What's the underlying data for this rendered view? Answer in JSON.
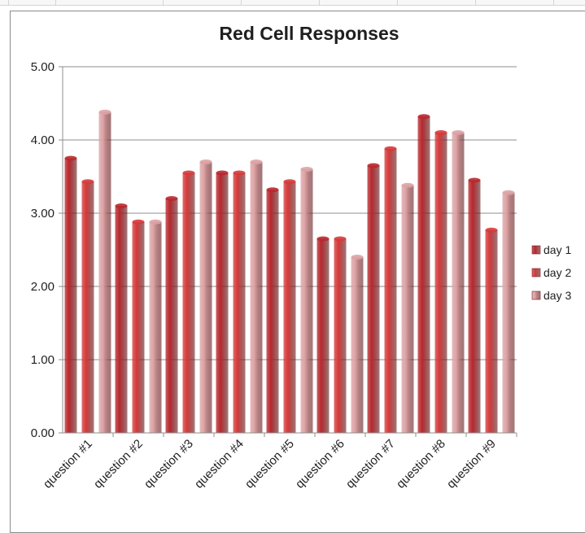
{
  "colors": {
    "day1": "#b8282e",
    "day2": "#d63a3a",
    "day3": "#dca2a4",
    "grid": "#8f8f8f",
    "frame": "#8c8c8c"
  },
  "chart_data": {
    "type": "bar",
    "title": "Red Cell Responses",
    "xlabel": "",
    "ylabel": "",
    "ylim": [
      0,
      5
    ],
    "yticks": [
      "0.00",
      "1.00",
      "2.00",
      "3.00",
      "4.00",
      "5.00"
    ],
    "grid": true,
    "legend_position": "right",
    "categories": [
      "question #1",
      "question #2",
      "question #3",
      "question #4",
      "question #5",
      "question #6",
      "question #7",
      "question #8",
      "question #9"
    ],
    "series": [
      {
        "name": "day 1",
        "color": "#b8282e",
        "values": [
          3.75,
          3.1,
          3.2,
          3.55,
          3.32,
          2.65,
          3.65,
          4.32,
          3.45
        ]
      },
      {
        "name": "day 2",
        "color": "#d63a3a",
        "values": [
          3.43,
          2.88,
          3.55,
          3.55,
          3.43,
          2.65,
          3.88,
          4.1,
          2.77
        ]
      },
      {
        "name": "day 3",
        "color": "#dca2a4",
        "values": [
          4.38,
          2.88,
          3.7,
          3.7,
          3.6,
          2.4,
          3.38,
          4.1,
          3.28
        ]
      }
    ]
  }
}
